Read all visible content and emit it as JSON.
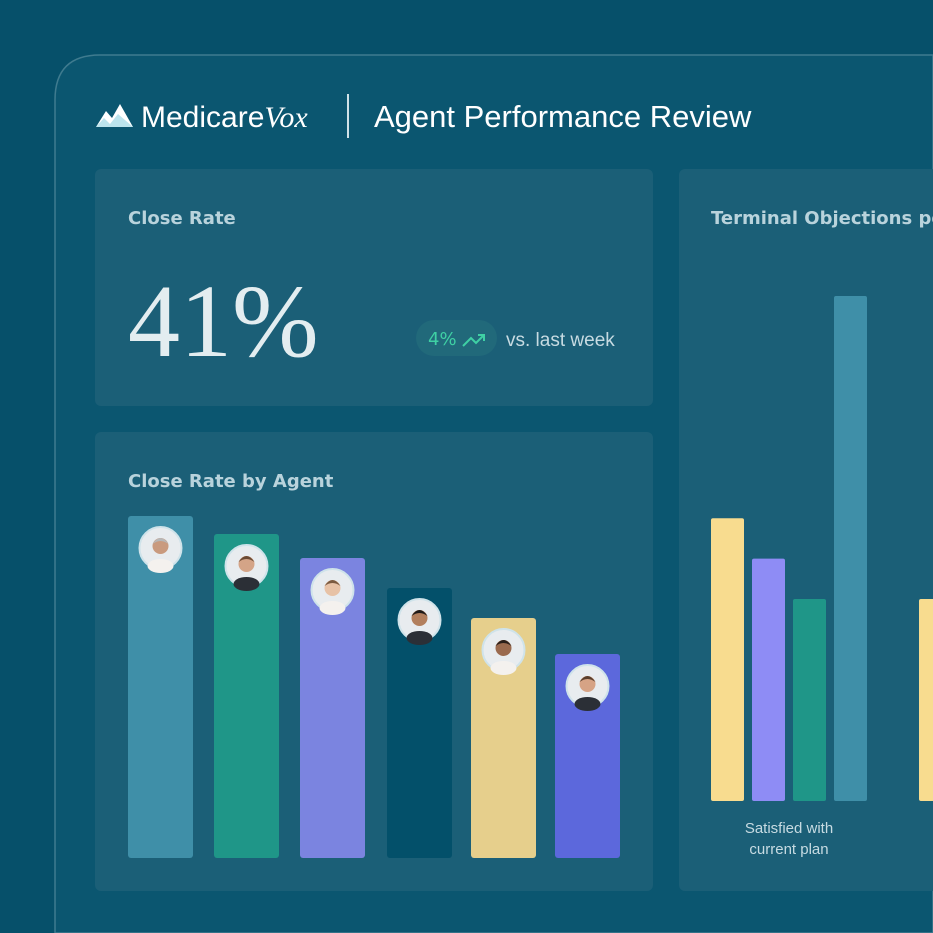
{
  "header": {
    "brand": "Medicare",
    "brand_suffix": "Vox",
    "title": "Agent Performance Review"
  },
  "close_rate": {
    "title": "Close Rate",
    "value": "41%",
    "change": "4%",
    "change_note": "vs. last week"
  },
  "chart_data": [
    {
      "type": "bar",
      "title": "Close Rate by Agent",
      "values": [
        57,
        54,
        50,
        45,
        40,
        34
      ],
      "colors": [
        "#3f8fa8",
        "#1f9688",
        "#7b84e0",
        "#03506a",
        "#e6cf8c",
        "#5c68dc"
      ]
    },
    {
      "type": "grouped-bar",
      "title": "Terminal Objections per",
      "categories": [
        "Satisfied with current plan",
        null
      ],
      "series": [
        {
          "color": "#f8dc8f",
          "values": [
            28,
            20
          ]
        },
        {
          "color": "#8e8cf5",
          "values": [
            24,
            null
          ]
        },
        {
          "color": "#1f9688",
          "values": [
            20,
            null
          ]
        },
        {
          "color": "#3f8fa8",
          "values": [
            50,
            null
          ]
        }
      ]
    }
  ]
}
